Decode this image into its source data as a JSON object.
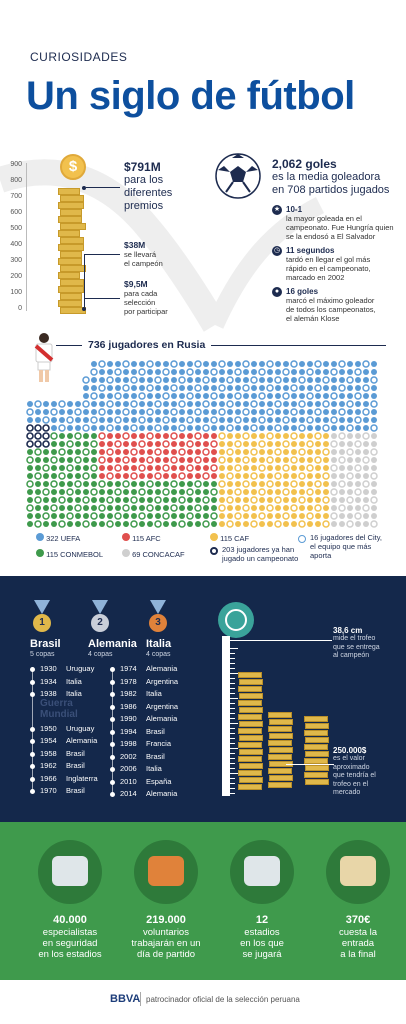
{
  "header": {
    "kicker": "CURIOSIDADES",
    "title": "Un siglo de fútbol"
  },
  "prize": {
    "axis_ticks": [
      "900",
      "800",
      "700",
      "600",
      "500",
      "400",
      "300",
      "200",
      "100",
      "0"
    ],
    "total_value": "$791M",
    "total_text": [
      "para los",
      "diferentes",
      "premios"
    ],
    "champion_value": "$38M",
    "champion_text": [
      "se llevará",
      "el campeón"
    ],
    "participant_value": "$9,5M",
    "participant_text": [
      "para cada",
      "selección",
      "por participar"
    ],
    "coin_symbol": "$"
  },
  "goals": {
    "headline": "2,062 goles",
    "sub": [
      "es la media goleadora",
      "en 708 partidos jugados"
    ],
    "facts": [
      {
        "title": "10-1",
        "text": [
          "la mayor goleada en el",
          "campeonato. Fue Hungría quien",
          "se la endosó a El Salvador"
        ],
        "icon": "star-icon"
      },
      {
        "title": "11 segundos",
        "text": [
          "tardó en llegar el gol más",
          "rápido en el campeonato,",
          "marcado en 2002"
        ],
        "icon": "clock-icon"
      },
      {
        "title": "16 goles",
        "text": [
          "marcó el máximo goleador",
          "de todos los campeonatos,",
          "el alemán Klose"
        ],
        "icon": "ball-icon"
      }
    ]
  },
  "players": {
    "title": "736 jugadores en Rusia",
    "colors": {
      "uefa": "#5b9bd5",
      "afc": "#e0504e",
      "caf": "#f2c14e",
      "conmebol": "#3f9a4c",
      "concacaf": "#cfcfcf",
      "navy": "#1d2b4f"
    },
    "legend": [
      {
        "label": "322 UEFA",
        "color": "#5b9bd5"
      },
      {
        "label": "115 AFC",
        "color": "#e0504e"
      },
      {
        "label": "115 CAF",
        "color": "#f2c14e"
      },
      {
        "label": "115 CONMEBOL",
        "color": "#3f9a4c"
      },
      {
        "label": "69 CONCACAF",
        "color": "#cfcfcf"
      }
    ],
    "legend_notes": [
      [
        "203 jugadores ya han",
        "jugado un campeonato"
      ],
      [
        "16 jugadores del City,",
        "el equipo que más",
        "aporta"
      ]
    ]
  },
  "champions": {
    "teams": [
      {
        "rank": "1",
        "name": "Brasil",
        "cups": "5 copas",
        "color": "#e0b84a"
      },
      {
        "rank": "2",
        "name": "Alemania",
        "cups": "4 copas",
        "color": "#c9ced8"
      },
      {
        "rank": "3",
        "name": "Italia",
        "cups": "4 copas",
        "color": "#e0823a"
      }
    ],
    "left_list": [
      [
        "1930",
        "Uruguay"
      ],
      [
        "1934",
        "Italia"
      ],
      [
        "1938",
        "Italia"
      ],
      [
        "1950",
        "Uruguay"
      ],
      [
        "1954",
        "Alemania"
      ],
      [
        "1958",
        "Brasil"
      ],
      [
        "1962",
        "Brasil"
      ],
      [
        "1966",
        "Inglaterra"
      ],
      [
        "1970",
        "Brasil"
      ]
    ],
    "war_label": [
      "Guerra",
      "Mundial"
    ],
    "right_list": [
      [
        "1974",
        "Alemania"
      ],
      [
        "1978",
        "Argentina"
      ],
      [
        "1982",
        "Italia"
      ],
      [
        "1986",
        "Argentina"
      ],
      [
        "1990",
        "Alemania"
      ],
      [
        "1994",
        "Brasil"
      ],
      [
        "1998",
        "Francia"
      ],
      [
        "2002",
        "Brasil"
      ],
      [
        "2006",
        "Italia"
      ],
      [
        "2010",
        "España"
      ],
      [
        "2014",
        "Alemania"
      ]
    ],
    "trophy_height": "38,6 cm",
    "trophy_height_text": [
      "mide el trofeo",
      "que se entrega",
      "al campeón"
    ],
    "trophy_value": "250.000$",
    "trophy_value_text": [
      "es el valor",
      "aproximado",
      "que tendría  el",
      "trofeo en el",
      "mercado"
    ]
  },
  "stats": [
    {
      "value": "40.000",
      "text": [
        "especialistas",
        "en seguridad",
        "en los estadios"
      ],
      "icon": "camera-icon"
    },
    {
      "value": "219.000",
      "text": [
        "voluntarios",
        "trabajarán en un",
        "día de partido"
      ],
      "icon": "hands-icon"
    },
    {
      "value": "12",
      "text": [
        "estadios",
        "en los que",
        "se jugará"
      ],
      "icon": "stadium-icon"
    },
    {
      "value": "370€",
      "text": [
        "cuesta la",
        "entrada",
        "a la final"
      ],
      "icon": "ticket-icon"
    }
  ],
  "footer": {
    "brand": "BBVA",
    "text": "patrocinador oficial de la selección peruana"
  }
}
